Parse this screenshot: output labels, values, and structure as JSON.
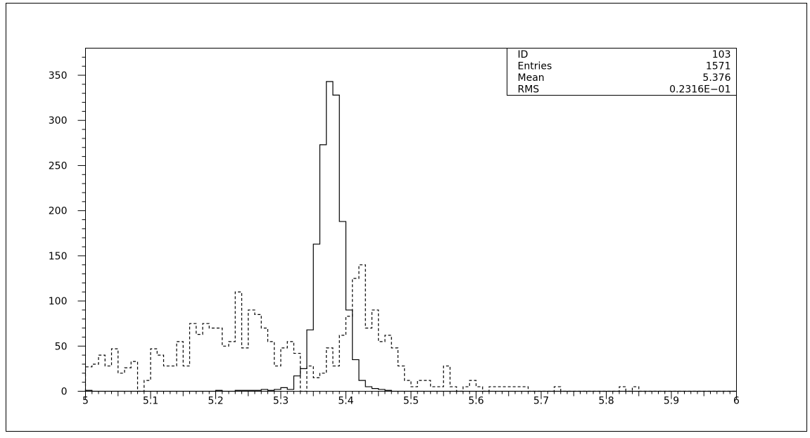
{
  "chart_data": {
    "type": "histogram",
    "title": "",
    "xlabel": "",
    "ylabel": "",
    "xlim": [
      5,
      6
    ],
    "ylim": [
      0,
      380
    ],
    "bin_width": 0.01,
    "x_ticks": [
      "5",
      "5.1",
      "5.2",
      "5.3",
      "5.4",
      "5.5",
      "5.6",
      "5.7",
      "5.8",
      "5.9",
      "6"
    ],
    "y_ticks": [
      "0",
      "50",
      "100",
      "150",
      "200",
      "250",
      "300",
      "350"
    ],
    "grid": false,
    "stats_box": {
      "position": "top-right",
      "rows": [
        {
          "label": "ID",
          "value": "103"
        },
        {
          "label": "Entries",
          "value": "1571"
        },
        {
          "label": "Mean",
          "value": "5.376"
        },
        {
          "label": "RMS",
          "value": "0.2316E−01"
        }
      ]
    },
    "series": [
      {
        "style": "solid",
        "color": "#000000",
        "bins": [
          {
            "x": 5.0,
            "y": 1
          },
          {
            "x": 5.2,
            "y": 1
          },
          {
            "x": 5.23,
            "y": 1
          },
          {
            "x": 5.24,
            "y": 1
          },
          {
            "x": 5.25,
            "y": 1
          },
          {
            "x": 5.26,
            "y": 1
          },
          {
            "x": 5.27,
            "y": 2
          },
          {
            "x": 5.28,
            "y": 1
          },
          {
            "x": 5.29,
            "y": 2
          },
          {
            "x": 5.3,
            "y": 4
          },
          {
            "x": 5.31,
            "y": 2
          },
          {
            "x": 5.32,
            "y": 17
          },
          {
            "x": 5.33,
            "y": 25
          },
          {
            "x": 5.34,
            "y": 68
          },
          {
            "x": 5.35,
            "y": 163
          },
          {
            "x": 5.36,
            "y": 273
          },
          {
            "x": 5.37,
            "y": 343
          },
          {
            "x": 5.38,
            "y": 328
          },
          {
            "x": 5.39,
            "y": 188
          },
          {
            "x": 5.4,
            "y": 90
          },
          {
            "x": 5.41,
            "y": 35
          },
          {
            "x": 5.42,
            "y": 12
          },
          {
            "x": 5.43,
            "y": 5
          },
          {
            "x": 5.44,
            "y": 3
          },
          {
            "x": 5.45,
            "y": 2
          },
          {
            "x": 5.46,
            "y": 1
          }
        ]
      },
      {
        "style": "dashed",
        "color": "#000000",
        "bins": [
          {
            "x": 5.0,
            "y": 27
          },
          {
            "x": 5.01,
            "y": 30
          },
          {
            "x": 5.02,
            "y": 40
          },
          {
            "x": 5.03,
            "y": 28
          },
          {
            "x": 5.04,
            "y": 47
          },
          {
            "x": 5.05,
            "y": 20
          },
          {
            "x": 5.06,
            "y": 26
          },
          {
            "x": 5.07,
            "y": 33
          },
          {
            "x": 5.08,
            "y": 0
          },
          {
            "x": 5.09,
            "y": 12
          },
          {
            "x": 5.1,
            "y": 47
          },
          {
            "x": 5.11,
            "y": 40
          },
          {
            "x": 5.12,
            "y": 28
          },
          {
            "x": 5.13,
            "y": 28
          },
          {
            "x": 5.14,
            "y": 55
          },
          {
            "x": 5.15,
            "y": 28
          },
          {
            "x": 5.16,
            "y": 75
          },
          {
            "x": 5.17,
            "y": 63
          },
          {
            "x": 5.18,
            "y": 75
          },
          {
            "x": 5.19,
            "y": 70
          },
          {
            "x": 5.2,
            "y": 70
          },
          {
            "x": 5.21,
            "y": 50
          },
          {
            "x": 5.22,
            "y": 55
          },
          {
            "x": 5.23,
            "y": 110
          },
          {
            "x": 5.24,
            "y": 48
          },
          {
            "x": 5.25,
            "y": 90
          },
          {
            "x": 5.26,
            "y": 85
          },
          {
            "x": 5.27,
            "y": 70
          },
          {
            "x": 5.28,
            "y": 55
          },
          {
            "x": 5.29,
            "y": 28
          },
          {
            "x": 5.3,
            "y": 48
          },
          {
            "x": 5.31,
            "y": 55
          },
          {
            "x": 5.32,
            "y": 42
          },
          {
            "x": 5.33,
            "y": 0
          },
          {
            "x": 5.34,
            "y": 28
          },
          {
            "x": 5.35,
            "y": 15
          },
          {
            "x": 5.36,
            "y": 20
          },
          {
            "x": 5.37,
            "y": 48
          },
          {
            "x": 5.38,
            "y": 28
          },
          {
            "x": 5.39,
            "y": 62
          },
          {
            "x": 5.4,
            "y": 83
          },
          {
            "x": 5.41,
            "y": 125
          },
          {
            "x": 5.42,
            "y": 140
          },
          {
            "x": 5.43,
            "y": 70
          },
          {
            "x": 5.44,
            "y": 90
          },
          {
            "x": 5.45,
            "y": 55
          },
          {
            "x": 5.46,
            "y": 62
          },
          {
            "x": 5.47,
            "y": 48
          },
          {
            "x": 5.48,
            "y": 28
          },
          {
            "x": 5.49,
            "y": 12
          },
          {
            "x": 5.5,
            "y": 5
          },
          {
            "x": 5.51,
            "y": 12
          },
          {
            "x": 5.52,
            "y": 12
          },
          {
            "x": 5.53,
            "y": 5
          },
          {
            "x": 5.54,
            "y": 5
          },
          {
            "x": 5.55,
            "y": 28
          },
          {
            "x": 5.56,
            "y": 5
          },
          {
            "x": 5.57,
            "y": 0
          },
          {
            "x": 5.58,
            "y": 5
          },
          {
            "x": 5.59,
            "y": 12
          },
          {
            "x": 5.6,
            "y": 5
          },
          {
            "x": 5.61,
            "y": 0
          },
          {
            "x": 5.62,
            "y": 5
          },
          {
            "x": 5.63,
            "y": 5
          },
          {
            "x": 5.64,
            "y": 5
          },
          {
            "x": 5.65,
            "y": 5
          },
          {
            "x": 5.66,
            "y": 5
          },
          {
            "x": 5.67,
            "y": 5
          },
          {
            "x": 5.72,
            "y": 5
          },
          {
            "x": 5.82,
            "y": 5
          },
          {
            "x": 5.84,
            "y": 5
          }
        ]
      }
    ]
  }
}
